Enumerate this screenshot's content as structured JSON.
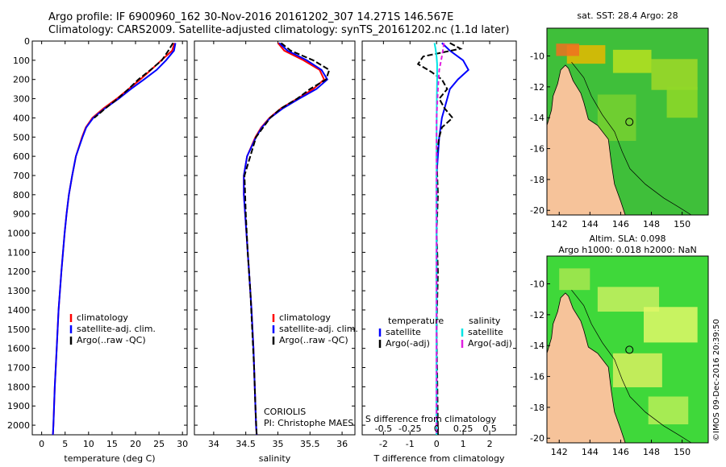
{
  "header": {
    "line1": "Argo profile: IF 6900960_162 30-Nov-2016 20161202_307 14.271S 146.567E",
    "line2": "Climatology: CARS2009. Satellite-adjusted climatology: synTS_20161202.nc (1.1d later)"
  },
  "colors": {
    "climatology": "#ff0000",
    "satellite": "#0000ff",
    "argo": "#000000",
    "salinity_sat": "#00e5e5",
    "salinity_argo": "#e020e0",
    "land": "#f6c39a"
  },
  "depth_ticks": [
    "0",
    "100",
    "200",
    "300",
    "400",
    "500",
    "600",
    "700",
    "800",
    "900",
    "1000",
    "1100",
    "1200",
    "1300",
    "1400",
    "1500",
    "1600",
    "1700",
    "1800",
    "1900",
    "2000"
  ],
  "chart_data": [
    {
      "type": "line",
      "id": "temperature",
      "xlabel": "temperature (deg C)",
      "xlim": [
        -2,
        31
      ],
      "ylim": [
        0,
        2050
      ],
      "xticks": [
        0,
        5,
        10,
        15,
        20,
        25,
        30
      ],
      "legend": [
        "climatology",
        "satellite-adj. clim.",
        "Argo(..raw -QC)"
      ],
      "series": [
        {
          "name": "climatology",
          "depth": [
            10,
            50,
            100,
            150,
            200,
            250,
            300,
            350,
            400,
            450,
            500,
            600,
            700,
            800,
            900,
            1000,
            1200,
            1400,
            1600,
            1800,
            2000,
            2050
          ],
          "values": [
            28.3,
            27.8,
            25.5,
            23.3,
            21.0,
            18.5,
            16.0,
            13.2,
            10.8,
            9.4,
            8.6,
            7.3,
            6.5,
            5.8,
            5.3,
            4.9,
            4.2,
            3.6,
            3.2,
            2.8,
            2.5,
            2.4
          ]
        },
        {
          "name": "satellite-adj. clim.",
          "depth": [
            10,
            50,
            100,
            150,
            200,
            250,
            300,
            350,
            400,
            450,
            500,
            600,
            700,
            800,
            900,
            1000,
            1200,
            1400,
            1600,
            1800,
            2000,
            2050
          ],
          "values": [
            28.5,
            28.2,
            26.5,
            24.5,
            21.8,
            19.0,
            16.4,
            13.5,
            11.0,
            9.5,
            8.7,
            7.3,
            6.5,
            5.8,
            5.3,
            4.9,
            4.2,
            3.6,
            3.2,
            2.8,
            2.5,
            2.4
          ]
        },
        {
          "name": "Argo(..raw -QC)",
          "depth": [
            10,
            50,
            100,
            150,
            200,
            250,
            300,
            350,
            400
          ],
          "values": [
            28.0,
            27.0,
            25.6,
            23.2,
            20.6,
            18.5,
            16.2,
            13.6,
            11.2
          ]
        }
      ]
    },
    {
      "type": "line",
      "id": "salinity",
      "xlabel": "salinity",
      "xlim": [
        33.7,
        36.2
      ],
      "ylim": [
        0,
        2050
      ],
      "xticks": [
        34,
        34.5,
        35,
        35.5,
        36
      ],
      "xtick_labels": [
        "34",
        "34.5",
        "35",
        "35.5",
        "36"
      ],
      "legend": [
        "climatology",
        "satellite-adj. clim.",
        "Argo(..raw -QC)"
      ],
      "annotation": [
        "CORIOLIS",
        "PI: Christophe MAES"
      ],
      "series": [
        {
          "name": "climatology",
          "depth": [
            10,
            50,
            100,
            150,
            200,
            250,
            300,
            350,
            400,
            450,
            500,
            600,
            700,
            800,
            900,
            1000,
            1200,
            1400,
            1600,
            1800,
            2000,
            2050
          ],
          "values": [
            35.0,
            35.1,
            35.4,
            35.65,
            35.72,
            35.55,
            35.3,
            35.05,
            34.87,
            34.74,
            34.65,
            34.52,
            34.47,
            34.47,
            34.49,
            34.51,
            34.55,
            34.59,
            34.62,
            34.64,
            34.66,
            34.67
          ]
        },
        {
          "name": "satellite-adj. clim.",
          "depth": [
            10,
            50,
            100,
            150,
            200,
            250,
            300,
            350,
            400,
            450,
            500,
            600,
            700,
            800,
            900,
            1000,
            1200,
            1400,
            1600,
            1800,
            2000,
            2050
          ],
          "values": [
            35.02,
            35.15,
            35.45,
            35.68,
            35.77,
            35.6,
            35.33,
            35.08,
            34.88,
            34.75,
            34.66,
            34.52,
            34.47,
            34.47,
            34.49,
            34.51,
            34.55,
            34.59,
            34.62,
            34.64,
            34.66,
            34.67
          ]
        },
        {
          "name": "Argo(..raw -QC)",
          "depth": [
            10,
            50,
            100,
            150,
            200,
            250,
            300,
            350,
            400,
            500,
            700,
            900,
            1100,
            1300,
            1500,
            1700,
            1900,
            2050
          ],
          "values": [
            35.05,
            35.2,
            35.55,
            35.8,
            35.75,
            35.5,
            35.3,
            35.05,
            34.88,
            34.66,
            34.48,
            34.5,
            34.53,
            34.57,
            34.6,
            34.63,
            34.65,
            34.67
          ]
        }
      ]
    },
    {
      "type": "line",
      "id": "differences",
      "xlabel": "T difference from climatology",
      "xlabel_top": "S difference from climatology",
      "xlim": [
        -2.8,
        3
      ],
      "ylim": [
        0,
        2050
      ],
      "xticks": [
        -2,
        -1,
        0,
        1,
        2
      ],
      "s_ticks": [
        -0.5,
        -0.25,
        0,
        0.25,
        0.5
      ],
      "s_tick_labels": [
        "-0.5",
        "-0.25",
        "0",
        "0.25",
        "0.5"
      ],
      "legend_t_title": "temperature",
      "legend_s_title": "salinity",
      "legend": [
        "satellite",
        "Argo(-adj)",
        "satellite",
        "Argo(-adj)"
      ],
      "series": [
        {
          "name": "satellite",
          "depth": [
            10,
            50,
            100,
            150,
            200,
            250,
            300,
            400,
            500,
            700,
            1000,
            1500,
            2050
          ],
          "values": [
            0.2,
            0.5,
            1.0,
            1.2,
            0.8,
            0.5,
            0.4,
            0.2,
            0.1,
            0.0,
            0.0,
            0.0,
            0.0
          ]
        },
        {
          "name": "Argo(-adj)",
          "depth": [
            10,
            40,
            80,
            120,
            160,
            200,
            250,
            300,
            350,
            400,
            450,
            500,
            600,
            800,
            1000,
            1200,
            1500,
            1800,
            2050
          ],
          "values": [
            0.5,
            0.9,
            -0.5,
            -0.7,
            -0.2,
            0.2,
            0.4,
            0.1,
            0.3,
            0.6,
            0.2,
            0.1,
            0.0,
            0.05,
            0.0,
            0.05,
            0.0,
            0.03,
            0.05
          ]
        },
        {
          "name": "satellite",
          "depth": [
            10,
            40,
            80,
            120,
            200,
            300,
            500,
            800,
            1200,
            2050
          ],
          "values": [
            -0.08,
            -0.04,
            0.0,
            0.02,
            0.02,
            0.01,
            0.0,
            0.0,
            0.0,
            0.0
          ]
        },
        {
          "name": "Argo(-adj)",
          "depth": [
            10,
            40,
            80,
            150,
            250,
            400,
            600,
            800,
            1000,
            1500,
            2050
          ],
          "values": [
            0.28,
            0.25,
            0.2,
            0.1,
            0.05,
            0.0,
            0.0,
            0.0,
            0.0,
            0.0,
            0.0
          ]
        }
      ]
    }
  ],
  "maps": {
    "top_title": "sat. SST: 28.4  Argo: 28",
    "bottom_title1": "Altim. SLA: 0.098",
    "bottom_title2": "Argo h1000: 0.018 h2000: NaN",
    "lon_ticks": [
      "142",
      "144",
      "146",
      "148",
      "150"
    ],
    "lat_ticks": [
      "-10",
      "-12",
      "-14",
      "-16",
      "-18",
      "-20"
    ],
    "profile_lon": 146.567,
    "profile_lat": -14.271
  },
  "footer": "©IMOS 09-Dec-2016 20:39:50"
}
